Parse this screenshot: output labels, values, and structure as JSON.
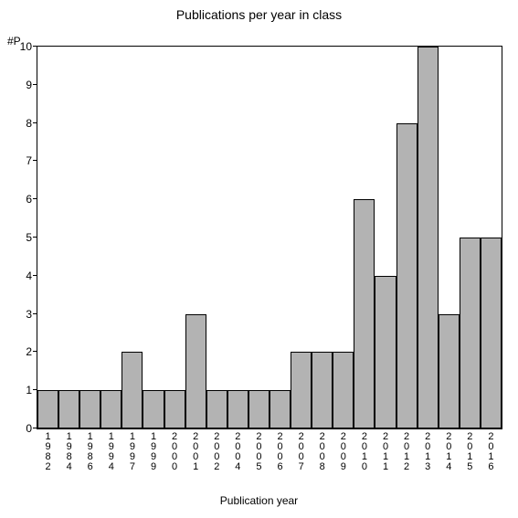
{
  "chart": {
    "type": "bar",
    "title": "Publications per year in class",
    "title_fontsize": 14,
    "y_axis_title": "#P",
    "x_axis_title": "Publication year",
    "label_fontsize": 12,
    "background_color": "#ffffff",
    "bar_fill_color": "#b3b3b3",
    "bar_border_color": "#000000",
    "axis_line_color": "#000000",
    "text_color": "#000000",
    "ylim": [
      0,
      10
    ],
    "yticks": [
      0,
      1,
      2,
      3,
      4,
      5,
      6,
      7,
      8,
      9,
      10
    ],
    "bar_width_ratio": 1.0,
    "categories": [
      "1982",
      "1984",
      "1986",
      "1994",
      "1997",
      "1999",
      "2000",
      "2001",
      "2002",
      "2004",
      "2005",
      "2006",
      "2007",
      "2008",
      "2009",
      "2010",
      "2011",
      "2012",
      "2013",
      "2014",
      "2015",
      "2016"
    ],
    "values": [
      1,
      1,
      1,
      1,
      2,
      1,
      1,
      3,
      1,
      1,
      1,
      1,
      2,
      2,
      2,
      6,
      4,
      8,
      10,
      3,
      5,
      5
    ]
  }
}
